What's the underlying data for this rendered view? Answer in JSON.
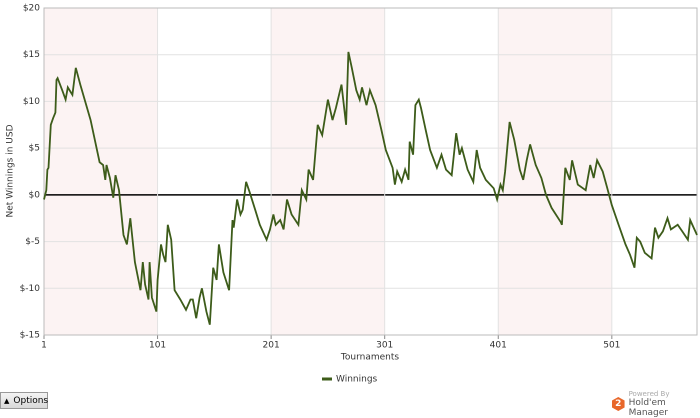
{
  "chart_data": {
    "type": "line",
    "y_label": "Net Winnings in USD",
    "x_label": "Tournaments",
    "xlim": [
      1,
      576
    ],
    "xticks": [
      1,
      101,
      201,
      301,
      401,
      501
    ],
    "ylim": [
      -15,
      20
    ],
    "yticks": [
      {
        "value": 20,
        "label": "$20"
      },
      {
        "value": 15,
        "label": "$15"
      },
      {
        "value": 10,
        "label": "$10"
      },
      {
        "value": 5,
        "label": "$5"
      },
      {
        "value": 0,
        "label": "$0"
      },
      {
        "value": -5,
        "label": "$-5"
      },
      {
        "value": -10,
        "label": "$-10"
      },
      {
        "value": -15,
        "label": "$-15"
      }
    ],
    "grid": true,
    "x": [
      1,
      3,
      4,
      5,
      7,
      9,
      11,
      12,
      13,
      17,
      20,
      22,
      26,
      29,
      33,
      42,
      50,
      53,
      55,
      56,
      59,
      62,
      64,
      67,
      71,
      74,
      77,
      81,
      86,
      88,
      90,
      93,
      94,
      96,
      100,
      101,
      104,
      106,
      108,
      110,
      113,
      116,
      121,
      126,
      130,
      132,
      135,
      138,
      140,
      144,
      147,
      150,
      153,
      155,
      159,
      164,
      167,
      168,
      171,
      174,
      176,
      179,
      182,
      187,
      191,
      197,
      200,
      203,
      205,
      209,
      212,
      215,
      219,
      225,
      228,
      232,
      234,
      238,
      242,
      246,
      251,
      255,
      258,
      263,
      267,
      269,
      272,
      276,
      279,
      281,
      285,
      288,
      293,
      298,
      302,
      308,
      310,
      312,
      316,
      319,
      322,
      323,
      326,
      328,
      331,
      333,
      337,
      341,
      347,
      351,
      355,
      360,
      364,
      367,
      369,
      374,
      379,
      382,
      385,
      390,
      397,
      400,
      403,
      405,
      407,
      411,
      415,
      420,
      423,
      426,
      429,
      434,
      439,
      443,
      448,
      456,
      457,
      460,
      464,
      466,
      471,
      478,
      482,
      485,
      488,
      493,
      497,
      501,
      507,
      513,
      517,
      521,
      523,
      526,
      530,
      536,
      539,
      542,
      546,
      550,
      553,
      559,
      563,
      568,
      570,
      576
    ],
    "series": [
      {
        "name": "Winnings",
        "color": "#3d5c1a",
        "values": [
          -0.5,
          0.5,
          2.7,
          2.9,
          7.5,
          8.2,
          8.8,
          12.3,
          12.5,
          11.2,
          10.2,
          11.5,
          10.7,
          13.6,
          11.8,
          8,
          3.5,
          3.2,
          1.6,
          3.2,
          1.8,
          -0.3,
          2.1,
          0.5,
          -4.3,
          -5.3,
          -2.5,
          -7.2,
          -10.2,
          -7.2,
          -9.6,
          -11.2,
          -7.2,
          -11,
          -12.5,
          -9.1,
          -5.3,
          -6.4,
          -7.2,
          -3.2,
          -4.8,
          -10.2,
          -11.2,
          -12.3,
          -11.2,
          -11.2,
          -13.2,
          -11,
          -10,
          -12.5,
          -13.9,
          -7.8,
          -9.1,
          -5.3,
          -8.3,
          -10.2,
          -2.7,
          -3.5,
          -0.5,
          -2.1,
          -1.6,
          1.4,
          0.3,
          -1.6,
          -3.2,
          -4.8,
          -3.7,
          -2.1,
          -3.2,
          -2.7,
          -3.7,
          -0.5,
          -2.1,
          -3.2,
          0.5,
          -0.5,
          2.7,
          1.6,
          7.5,
          6.4,
          10.2,
          8,
          9.3,
          11.8,
          7.5,
          15.3,
          13.6,
          11.2,
          10.2,
          11.5,
          9.6,
          11.2,
          9.6,
          7,
          4.8,
          2.9,
          1.1,
          2.5,
          1.4,
          2.7,
          1.6,
          5.7,
          4.3,
          9.6,
          10.2,
          9.3,
          7,
          4.8,
          2.9,
          4.3,
          2.7,
          2.1,
          6.6,
          4.3,
          5,
          2.7,
          1.4,
          4.8,
          2.9,
          1.6,
          0.7,
          -0.5,
          1.1,
          0.5,
          2.5,
          7.8,
          5.9,
          2.7,
          1.6,
          3.7,
          5.4,
          3.2,
          1.8,
          0,
          -1.4,
          -2.9,
          -3.2,
          2.9,
          1.6,
          3.7,
          1.1,
          0.5,
          3.2,
          1.8,
          3.7,
          2.5,
          0.7,
          -1.1,
          -3.2,
          -5.3,
          -6.4,
          -7.8,
          -4.6,
          -5,
          -6.2,
          -6.8,
          -3.5,
          -4.6,
          -3.9,
          -2.5,
          -3.7,
          -3.2,
          -3.9,
          -4.8,
          -2.7,
          -4.3
        ]
      }
    ]
  },
  "ui": {
    "button": "Options",
    "logo_top": "Powered By",
    "logo_name": "Hold'em Manager",
    "logo_icon": "2"
  }
}
